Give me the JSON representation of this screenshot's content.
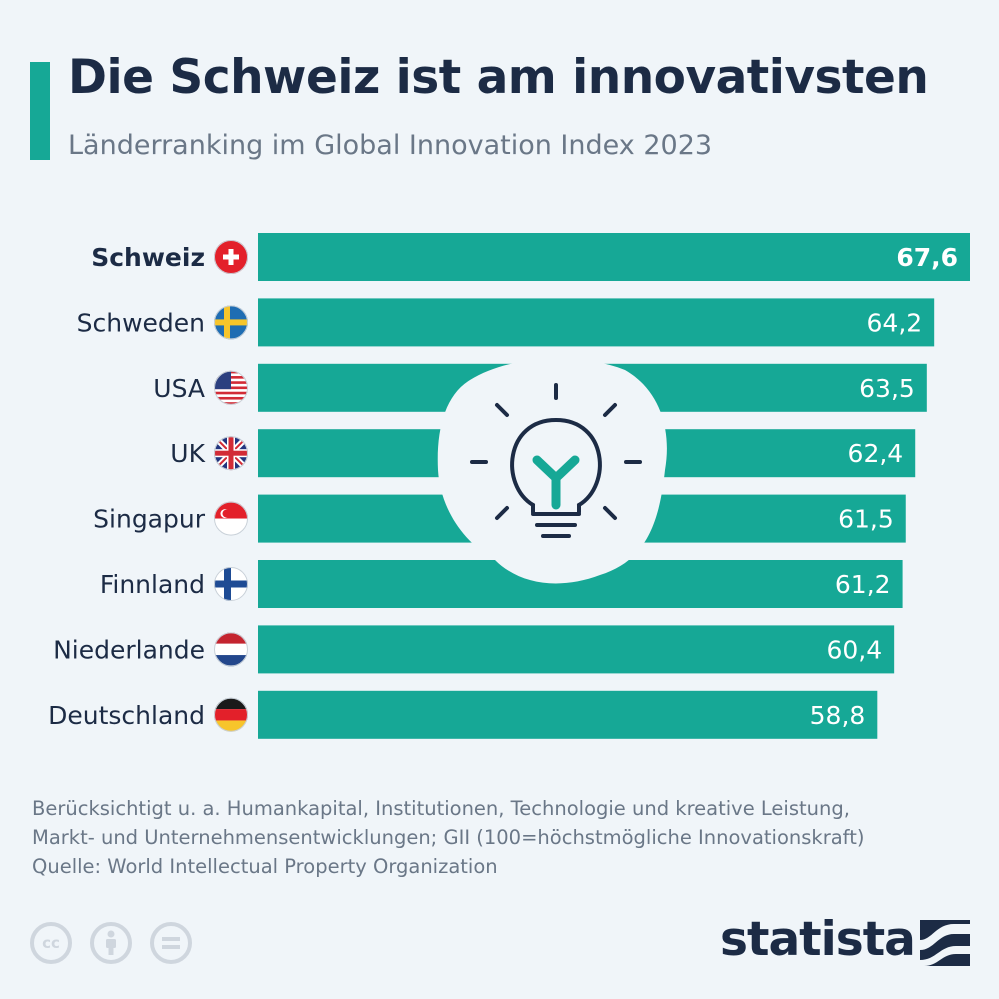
{
  "header": {
    "title": "Die Schweiz ist am innovativsten",
    "subtitle": "Länderranking im Global Innovation Index 2023"
  },
  "chart_data": {
    "type": "bar",
    "orientation": "horizontal",
    "categories": [
      "Schweiz",
      "Schweden",
      "USA",
      "UK",
      "Singapur",
      "Finnland",
      "Niederlande",
      "Deutschland"
    ],
    "values": [
      67.6,
      64.2,
      63.5,
      62.4,
      61.5,
      61.2,
      60.4,
      58.8
    ],
    "value_labels": [
      "67,6",
      "64,2",
      "63,5",
      "62,4",
      "61,5",
      "61,2",
      "60,4",
      "58,8"
    ],
    "flags": [
      "flag-switzerland-icon",
      "flag-sweden-icon",
      "flag-usa-icon",
      "flag-uk-icon",
      "flag-singapore-icon",
      "flag-finland-icon",
      "flag-netherlands-icon",
      "flag-germany-icon"
    ],
    "highlight_index": 0,
    "bar_color": "#16a896",
    "xlabel": "",
    "ylabel": "",
    "grid": false,
    "legend": "none"
  },
  "footer": {
    "note_line1": "Berücksichtigt u. a. Humankapital, Institutionen, Technologie und kreative Leistung,",
    "note_line2": "Markt- und Unternehmensentwicklungen; GII (100=höchstmögliche Innovationskraft)",
    "source": "Quelle: World Intellectual Property Organization",
    "brand": "statista"
  },
  "colors": {
    "accent": "#16a896",
    "text_dark": "#1c2b45",
    "text_muted": "#6a7787",
    "background": "#f0f5f9"
  },
  "icons": [
    "lightbulb-icon",
    "cc-icon",
    "attribution-icon",
    "noderivs-icon",
    "statista-logo-icon"
  ]
}
